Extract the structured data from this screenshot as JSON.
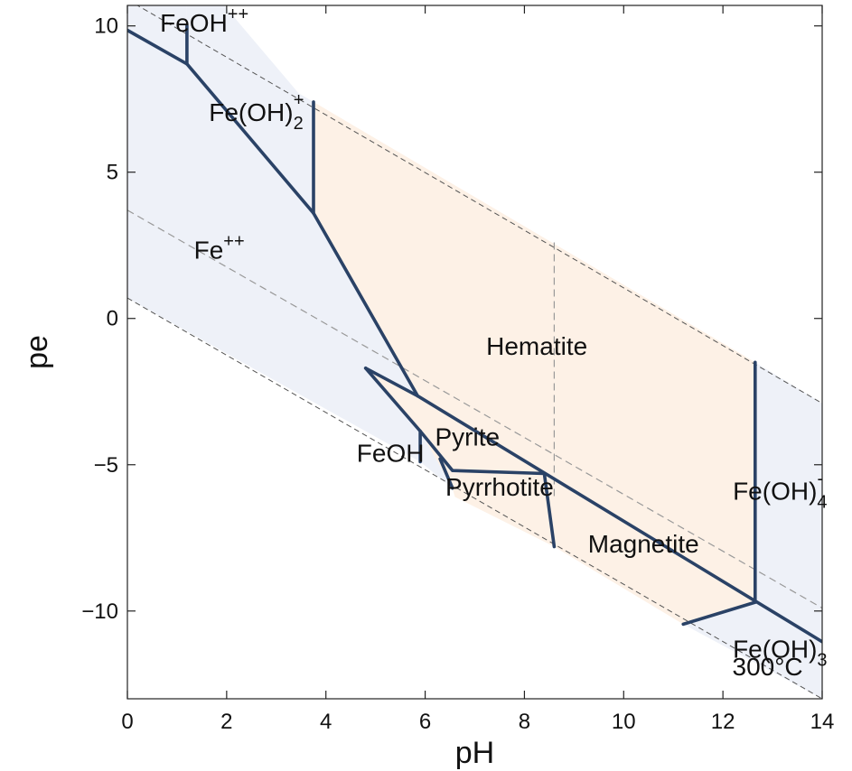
{
  "chart_data": {
    "type": "area",
    "xlabel": "pH",
    "ylabel": "pe",
    "xlim": [
      0,
      14
    ],
    "ylim": [
      -13,
      10.7
    ],
    "xticks": [
      {
        "value": 0,
        "label": "0"
      },
      {
        "value": 2,
        "label": "2"
      },
      {
        "value": 4,
        "label": "4"
      },
      {
        "value": 6,
        "label": "6"
      },
      {
        "value": 8,
        "label": "8"
      },
      {
        "value": 10,
        "label": "10"
      },
      {
        "value": 12,
        "label": "12"
      },
      {
        "value": 14,
        "label": "14"
      }
    ],
    "yticks": [
      {
        "value": 10,
        "label": "10"
      },
      {
        "value": 5,
        "label": "5"
      },
      {
        "value": 0,
        "label": "0"
      },
      {
        "value": -5,
        "label": "−5"
      },
      {
        "value": -10,
        "label": "−10"
      }
    ],
    "grid": false,
    "colors": {
      "aqueous_fill": "#eef1f8",
      "mineral_fill": "#fdf1e6",
      "boundary": "#2a4266",
      "water_limit": "#555555"
    },
    "temperature_label": "300°C",
    "water_stability_lines": [
      {
        "points": [
          [
            0,
            10.9
          ],
          [
            14,
            -2.9
          ]
        ]
      },
      {
        "points": [
          [
            0,
            0.7
          ],
          [
            14,
            -13.0
          ]
        ]
      },
      {
        "points": [
          [
            0,
            3.7
          ],
          [
            14,
            -9.9
          ]
        ]
      },
      {
        "points": [
          [
            8.6,
            2.6
          ],
          [
            8.6,
            -6.1
          ]
        ]
      }
    ],
    "regions": [
      {
        "name": "FeOH",
        "sup": "++",
        "sub": "",
        "label_pos": [
          1.55,
          9.8
        ],
        "fill": "aqueous",
        "polygon": [
          [
            0,
            10.7
          ],
          [
            0,
            9.85
          ],
          [
            1.2,
            8.7
          ],
          [
            1.2,
            10.7
          ]
        ]
      },
      {
        "name": "Fe(OH)",
        "sup": "+",
        "sub": "2",
        "label_pos": [
          2.6,
          6.75
        ],
        "fill": "aqueous",
        "polygon": [
          [
            1.2,
            10.7
          ],
          [
            1.2,
            8.7
          ],
          [
            3.75,
            3.6
          ],
          [
            3.75,
            7.4
          ],
          [
            3.45,
            7.7
          ],
          [
            1.95,
            10.7
          ]
        ]
      },
      {
        "name": "Fe",
        "sup": "++",
        "sub": "",
        "label_pos": [
          1.85,
          2.05
        ],
        "fill": "aqueous",
        "polygon": [
          [
            0,
            9.85
          ],
          [
            1.2,
            8.7
          ],
          [
            3.75,
            3.6
          ],
          [
            5.85,
            -2.65
          ],
          [
            4.8,
            -1.7
          ],
          [
            5.9,
            -3.85
          ],
          [
            5.9,
            -4.9
          ],
          [
            0,
            0.7
          ]
        ]
      },
      {
        "name": "Hematite",
        "sup": "",
        "sub": "",
        "label_pos": [
          8.25,
          -1.25
        ],
        "fill": "mineral",
        "polygon": [
          [
            3.75,
            7.4
          ],
          [
            12.65,
            -1.5
          ],
          [
            12.65,
            -9.7
          ],
          [
            5.85,
            -2.65
          ],
          [
            3.75,
            3.6
          ]
        ]
      },
      {
        "name": "Pyrite",
        "sup": "",
        "sub": "",
        "label_pos": [
          6.85,
          -4.35
        ],
        "fill": "mineral",
        "polygon": [
          [
            4.8,
            -1.7
          ],
          [
            5.85,
            -2.65
          ],
          [
            8.4,
            -5.3
          ],
          [
            6.55,
            -5.8
          ],
          [
            5.9,
            -3.85
          ]
        ]
      },
      {
        "name": "FeOH",
        "sup": "",
        "sub": "",
        "label_pos": [
          5.3,
          -4.9
        ],
        "fill": "aqueous",
        "polygon": [
          [
            5.9,
            -3.85
          ],
          [
            6.55,
            -5.8
          ],
          [
            5.9,
            -4.9
          ]
        ]
      },
      {
        "name": "Pyrrhotite",
        "sup": "",
        "sub": "",
        "label_pos": [
          7.5,
          -6.05
        ],
        "fill": "mineral",
        "polygon": [
          [
            6.55,
            -5.8
          ],
          [
            8.4,
            -5.3
          ],
          [
            8.6,
            -7.8
          ],
          [
            6.6,
            -6.1
          ]
        ]
      },
      {
        "name": "Magnetite",
        "sup": "",
        "sub": "",
        "label_pos": [
          10.4,
          -8.0
        ],
        "fill": "mineral",
        "polygon": [
          [
            8.4,
            -5.3
          ],
          [
            12.65,
            -9.7
          ],
          [
            11.2,
            -10.45
          ],
          [
            8.6,
            -7.8
          ]
        ]
      },
      {
        "name": "Fe(OH)",
        "sup": "-",
        "sub": "4",
        "label_pos": [
          13.15,
          -6.2
        ],
        "fill": "aqueous",
        "polygon": [
          [
            12.65,
            -1.5
          ],
          [
            14,
            -2.9
          ],
          [
            14,
            -11.05
          ],
          [
            12.65,
            -9.7
          ]
        ]
      },
      {
        "name": "Fe(OH)",
        "sup": "",
        "sub": "3",
        "label_pos": [
          13.15,
          -11.6
        ],
        "fill": "aqueous",
        "polygon": [
          [
            11.2,
            -10.45
          ],
          [
            12.65,
            -9.7
          ],
          [
            14,
            -11.05
          ],
          [
            14,
            -13.0
          ]
        ]
      }
    ],
    "boundaries": [
      [
        [
          0,
          9.85
        ],
        [
          1.2,
          8.7
        ],
        [
          3.75,
          3.6
        ],
        [
          5.85,
          -2.65
        ]
      ],
      [
        [
          1.2,
          10.0
        ],
        [
          1.2,
          8.7
        ]
      ],
      [
        [
          3.75,
          7.4
        ],
        [
          3.75,
          3.6
        ]
      ],
      [
        [
          4.8,
          -1.7
        ],
        [
          5.85,
          -2.65
        ],
        [
          14,
          -11.05
        ]
      ],
      [
        [
          4.8,
          -1.7
        ],
        [
          5.9,
          -3.85
        ],
        [
          6.55,
          -5.2
        ],
        [
          8.4,
          -5.3
        ],
        [
          8.6,
          -7.8
        ]
      ],
      [
        [
          5.9,
          -3.85
        ],
        [
          5.9,
          -4.9
        ]
      ],
      [
        [
          6.3,
          -4.8
        ],
        [
          6.55,
          -5.8
        ]
      ],
      [
        [
          12.65,
          -1.5
        ],
        [
          12.65,
          -9.7
        ]
      ],
      [
        [
          11.2,
          -10.45
        ],
        [
          12.65,
          -9.7
        ]
      ]
    ]
  }
}
